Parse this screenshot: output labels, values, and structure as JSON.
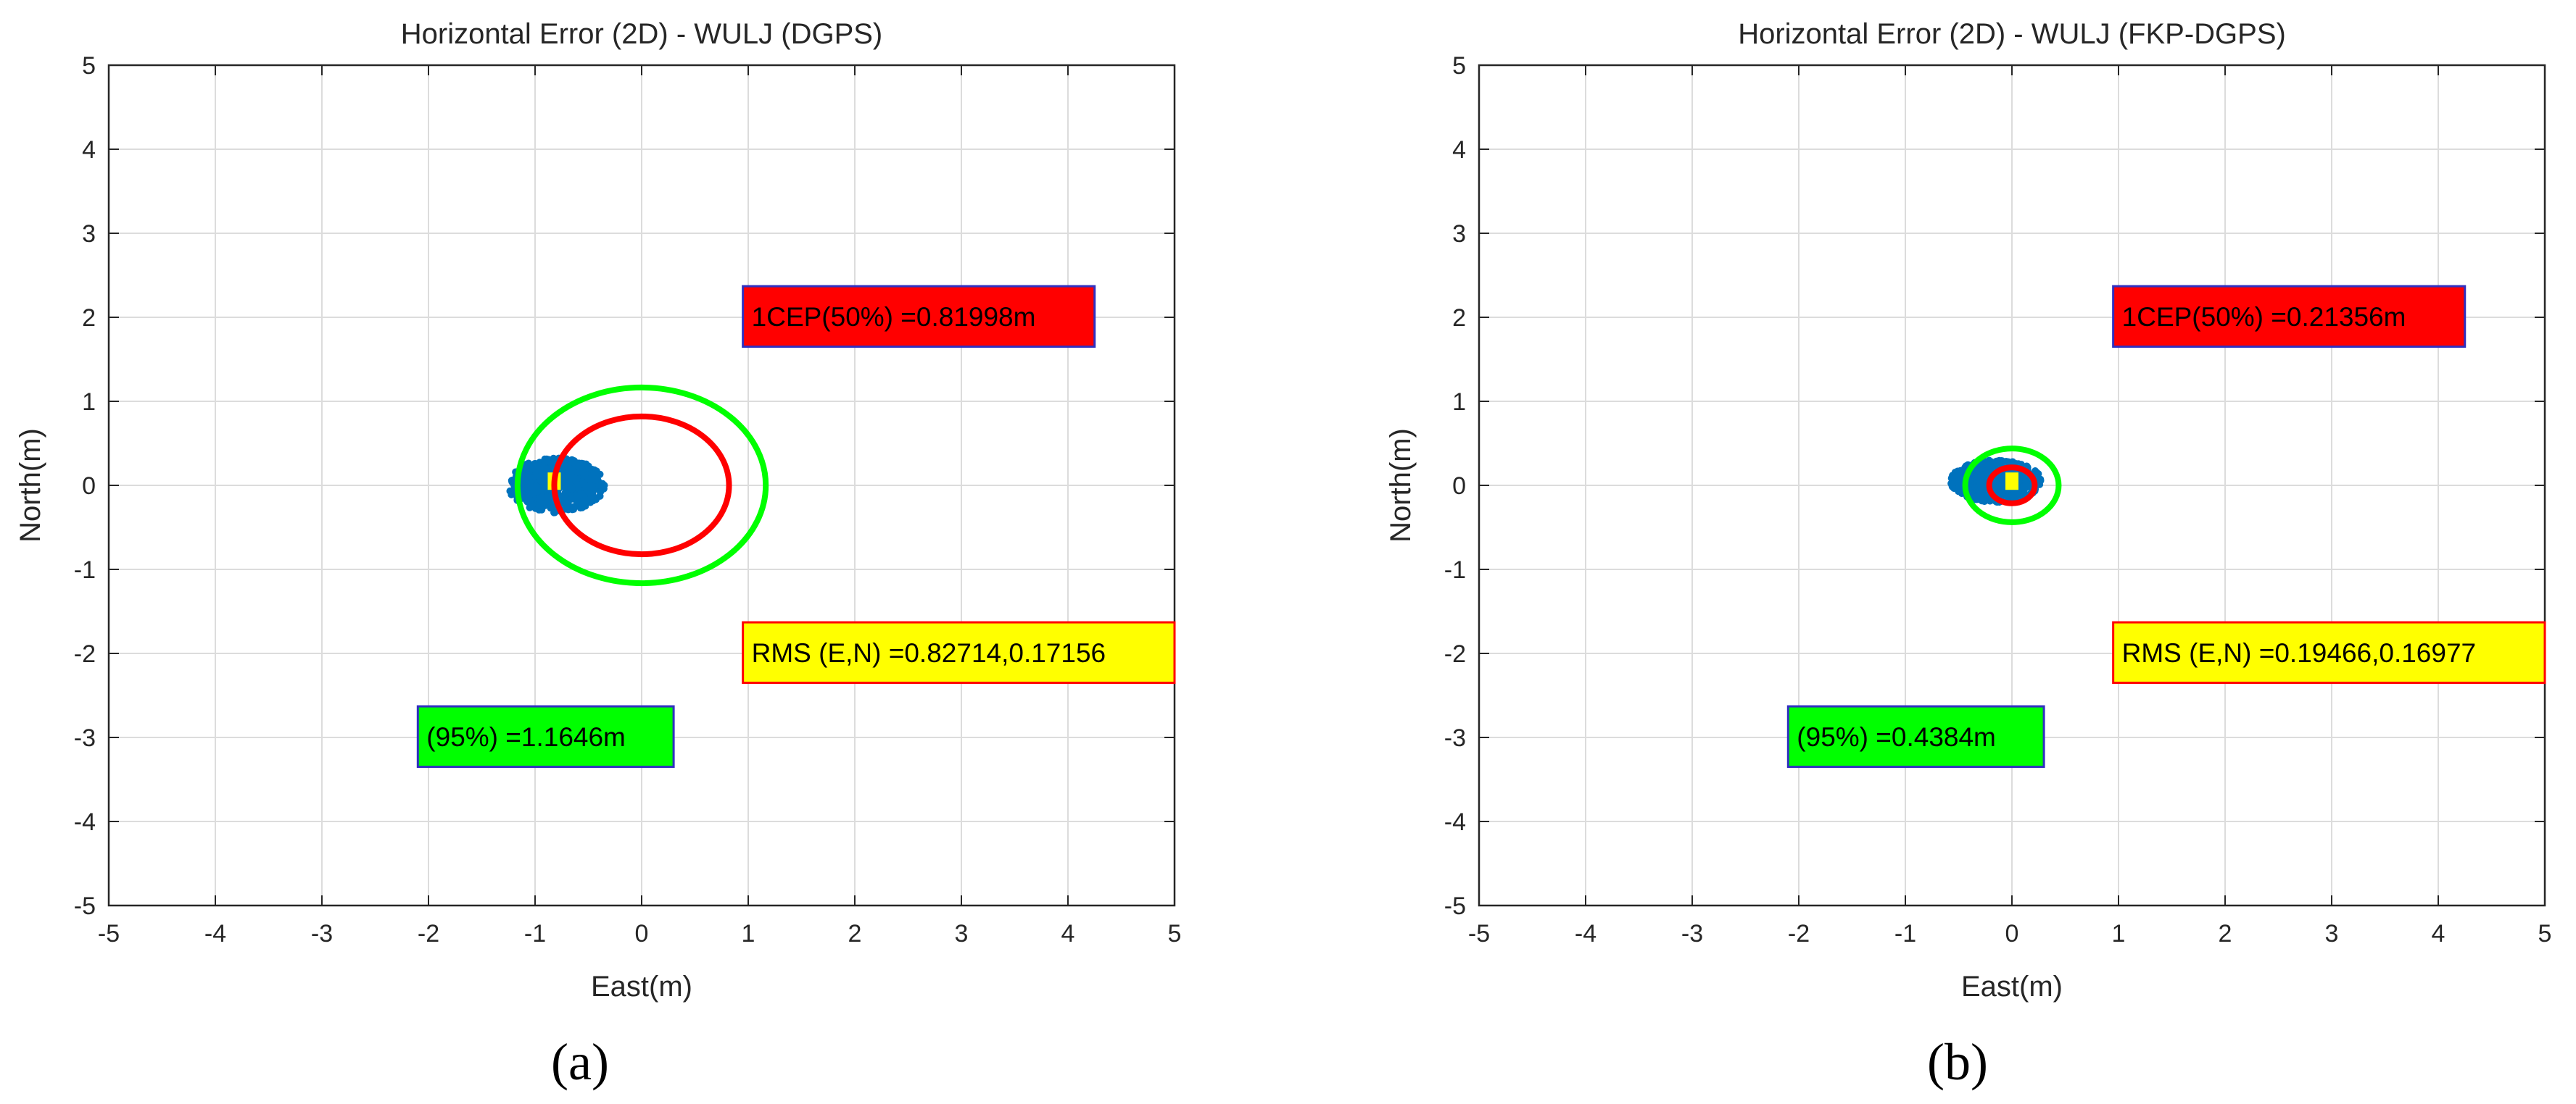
{
  "chart_data": [
    {
      "type": "scatter",
      "title": "Horizontal Error (2D) - WULJ (DGPS)",
      "xlabel": "East(m)",
      "ylabel": "North(m)",
      "xlim": [
        -5,
        5
      ],
      "ylim": [
        -5,
        5
      ],
      "xticks": [
        "-5",
        "-4",
        "-3",
        "-2",
        "-1",
        "0",
        "1",
        "2",
        "3",
        "4",
        "5"
      ],
      "yticks": [
        "5",
        "4",
        "3",
        "2",
        "1",
        "0",
        "-1",
        "-2",
        "-3",
        "-4",
        "-5"
      ],
      "grid": true,
      "caption": "(a)",
      "scatter_cloud": {
        "center_e": -0.8,
        "center_n": 0.0,
        "spread_e": 0.9,
        "spread_n": 0.65,
        "color": "#0072BD"
      },
      "mean_marker": {
        "e": -0.82,
        "n": 0.05,
        "color": "#FFFF00"
      },
      "circles": [
        {
          "name": "CEP 50%",
          "center_e": 0,
          "center_n": 0,
          "radius": 0.81998,
          "color": "#FF0000"
        },
        {
          "name": "95%",
          "center_e": 0,
          "center_n": 0,
          "radius": 1.1646,
          "color": "#00FF00"
        }
      ],
      "annotations": [
        {
          "text": "1CEP(50%) =0.81998m",
          "e": 0.95,
          "n": 1.65,
          "w": 3.3,
          "h": 0.72,
          "fill": "#FF0000",
          "stroke": "#3030c0"
        },
        {
          "text": "RMS (E,N) =0.82714,0.17156",
          "e": 0.95,
          "n": -2.35,
          "w": 4.05,
          "h": 0.72,
          "fill": "#FFFF00",
          "stroke": "#FF0000"
        },
        {
          "text": "(95%) =1.1646m",
          "e": -2.1,
          "n": -3.35,
          "w": 2.4,
          "h": 0.72,
          "fill": "#00FF00",
          "stroke": "#3030c0"
        }
      ]
    },
    {
      "type": "scatter",
      "title": "Horizontal Error (2D) - WULJ (FKP-DGPS)",
      "xlabel": "East(m)",
      "ylabel": "North(m)",
      "xlim": [
        -5,
        5
      ],
      "ylim": [
        -5,
        5
      ],
      "xticks": [
        "-5",
        "-4",
        "-3",
        "-2",
        "-1",
        "0",
        "1",
        "2",
        "3",
        "4",
        "5"
      ],
      "yticks": [
        "5",
        "4",
        "3",
        "2",
        "1",
        "0",
        "-1",
        "-2",
        "-3",
        "-4",
        "-5"
      ],
      "grid": true,
      "caption": "(b)",
      "scatter_cloud": {
        "center_e": -0.15,
        "center_n": 0.05,
        "spread_e": 0.85,
        "spread_n": 0.5,
        "color": "#0072BD"
      },
      "mean_marker": {
        "e": 0.0,
        "n": 0.05,
        "color": "#FFFF00"
      },
      "circles": [
        {
          "name": "CEP 50%",
          "center_e": 0,
          "center_n": 0,
          "radius": 0.21356,
          "color": "#FF0000"
        },
        {
          "name": "95%",
          "center_e": 0,
          "center_n": 0,
          "radius": 0.4384,
          "color": "#00FF00"
        }
      ],
      "annotations": [
        {
          "text": "1CEP(50%) =0.21356m",
          "e": 0.95,
          "n": 1.65,
          "w": 3.3,
          "h": 0.72,
          "fill": "#FF0000",
          "stroke": "#3030c0"
        },
        {
          "text": "RMS (E,N) =0.19466,0.16977",
          "e": 0.95,
          "n": -2.35,
          "w": 4.05,
          "h": 0.72,
          "fill": "#FFFF00",
          "stroke": "#FF0000"
        },
        {
          "text": "(95%) =0.4384m",
          "e": -2.1,
          "n": -3.35,
          "w": 2.4,
          "h": 0.72,
          "fill": "#00FF00",
          "stroke": "#3030c0"
        }
      ]
    }
  ]
}
